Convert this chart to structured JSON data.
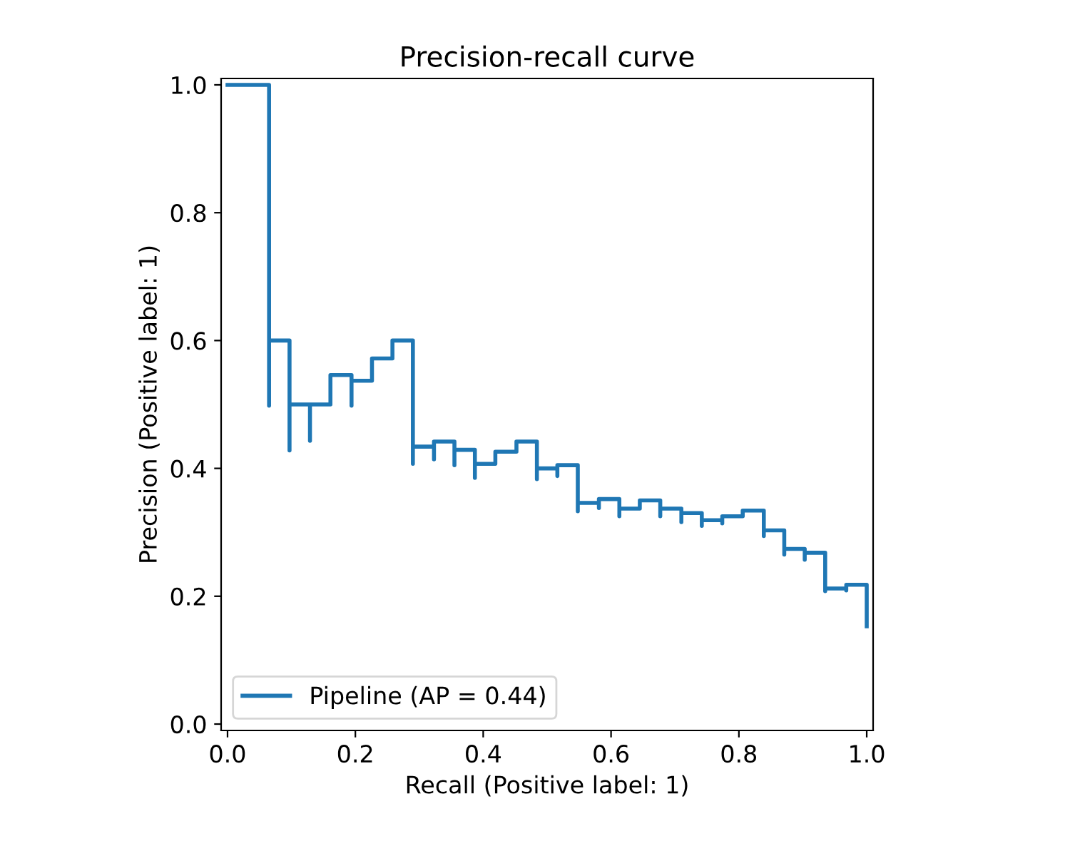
{
  "chart_data": {
    "type": "step",
    "title": "Precision-recall curve",
    "xlabel": "Recall (Positive label: 1)",
    "ylabel": "Precision (Positive label: 1)",
    "xlim": [
      -0.01,
      1.01
    ],
    "ylim": [
      -0.01,
      1.01
    ],
    "xticks": [
      {
        "value": 0,
        "label": "0.0"
      },
      {
        "value": 0.2,
        "label": "0.2"
      },
      {
        "value": 0.4,
        "label": "0.4"
      },
      {
        "value": 0.6,
        "label": "0.6"
      },
      {
        "value": 0.8,
        "label": "0.8"
      },
      {
        "value": 1,
        "label": "1.0"
      }
    ],
    "yticks": [
      {
        "value": 0,
        "label": "0.0"
      },
      {
        "value": 0.2,
        "label": "0.2"
      },
      {
        "value": 0.4,
        "label": "0.4"
      },
      {
        "value": 0.6,
        "label": "0.6"
      },
      {
        "value": 0.8,
        "label": "0.8"
      },
      {
        "value": 1,
        "label": "1.0"
      }
    ],
    "grid": false,
    "legend": "bottom left",
    "series": [
      {
        "name": "Pipeline (AP = 0.44)",
        "color": "#1f77b4",
        "x": [
          1.0,
          1.0,
          0.968,
          0.968,
          0.935,
          0.935,
          0.903,
          0.903,
          0.871,
          0.871,
          0.839,
          0.839,
          0.806,
          0.774,
          0.774,
          0.742,
          0.742,
          0.71,
          0.71,
          0.677,
          0.677,
          0.645,
          0.613,
          0.613,
          0.581,
          0.581,
          0.548,
          0.548,
          0.516,
          0.516,
          0.484,
          0.484,
          0.452,
          0.419,
          0.387,
          0.387,
          0.355,
          0.355,
          0.323,
          0.323,
          0.29,
          0.29,
          0.258,
          0.226,
          0.194,
          0.194,
          0.161,
          0.129,
          0.129,
          0.097,
          0.097,
          0.065,
          0.065,
          0.0
        ],
        "values": [
          0.153,
          0.218,
          0.209,
          0.212,
          0.208,
          0.268,
          0.257,
          0.274,
          0.265,
          0.303,
          0.294,
          0.334,
          0.325,
          0.314,
          0.319,
          0.31,
          0.33,
          0.316,
          0.337,
          0.325,
          0.35,
          0.337,
          0.325,
          0.352,
          0.338,
          0.346,
          0.333,
          0.405,
          0.388,
          0.4,
          0.383,
          0.442,
          0.426,
          0.407,
          0.385,
          0.429,
          0.405,
          0.442,
          0.414,
          0.434,
          0.407,
          0.6,
          0.572,
          0.537,
          0.498,
          0.546,
          0.5,
          0.443,
          0.5,
          0.428,
          0.6,
          0.498,
          1.0,
          1.0
        ]
      }
    ]
  }
}
